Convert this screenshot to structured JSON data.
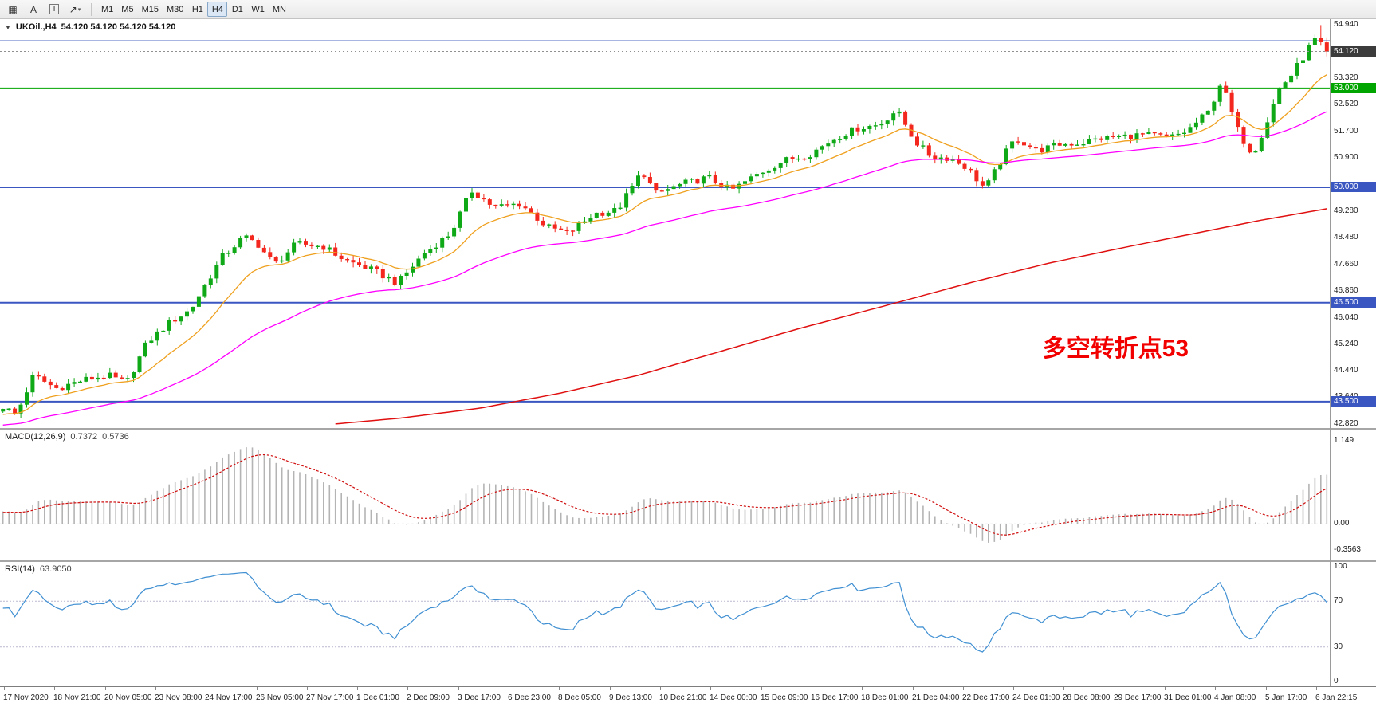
{
  "toolbar": {
    "tools": [
      {
        "name": "chart-grid-icon",
        "glyph": "▦"
      },
      {
        "name": "cursor-tool-icon",
        "glyph": "A"
      },
      {
        "name": "text-label-tool-icon",
        "glyph": "T",
        "boxed": true
      },
      {
        "name": "drawing-tools-icon",
        "glyph": "↗",
        "caret": "▾"
      }
    ],
    "timeframes": [
      "M1",
      "M5",
      "M15",
      "M30",
      "H1",
      "H4",
      "D1",
      "W1",
      "MN"
    ],
    "active": "H4"
  },
  "chart": {
    "header": {
      "collapse_glyph": "▼",
      "title": "UKOil.,H4",
      "ohlc": "54.120 54.120 54.120 54.120"
    },
    "annotation": {
      "text": "多空转折点53",
      "color": "#f20000"
    },
    "levels": [
      {
        "price": 54.45,
        "color": "#7487cf",
        "w": 1
      },
      {
        "price": 53.0,
        "color": "#00a500",
        "w": 2
      },
      {
        "price": 50.0,
        "color": "#3a56c0",
        "w": 2
      },
      {
        "price": 46.5,
        "color": "#3a56c0",
        "w": 2
      },
      {
        "price": 43.5,
        "color": "#3a56c0",
        "w": 2
      }
    ],
    "price_axis": {
      "ticks": [
        "54.940",
        "53.320",
        "52.520",
        "51.700",
        "50.900",
        "49.280",
        "48.480",
        "47.660",
        "46.860",
        "46.040",
        "45.240",
        "44.440",
        "43.640",
        "42.820"
      ],
      "badges": [
        {
          "label": "54.120",
          "value": 54.12,
          "bg": "#3c3c3c"
        },
        {
          "label": "53.000",
          "value": 53.0,
          "bg": "#00a500"
        },
        {
          "label": "50.000",
          "value": 50.0,
          "bg": "#3a56c0"
        },
        {
          "label": "46.500",
          "value": 46.5,
          "bg": "#3a56c0"
        },
        {
          "label": "43.500",
          "value": 43.5,
          "bg": "#3a56c0"
        }
      ]
    }
  },
  "macd": {
    "name": "MACD(12,26,9)",
    "value_main": "0.7372",
    "value_signal": "0.5736",
    "scale": [
      {
        "label": "1.149",
        "value": 1.149
      },
      {
        "label": "0.00",
        "value": 0
      },
      {
        "label": "-0.3563",
        "value": -0.3563
      }
    ]
  },
  "rsi": {
    "name": "RSI(14)",
    "value": "63.9050",
    "levels": [
      70,
      30
    ],
    "scale": [
      {
        "label": "100",
        "value": 100
      },
      {
        "label": "70",
        "value": 70
      },
      {
        "label": "30",
        "value": 30
      },
      {
        "label": "0",
        "value": 0
      }
    ]
  },
  "date_axis": [
    "17 Nov 2020",
    "18 Nov 21:00",
    "20 Nov 05:00",
    "23 Nov 08:00",
    "24 Nov 17:00",
    "26 Nov 05:00",
    "27 Nov 17:00",
    "1 Dec 01:00",
    "2 Dec 09:00",
    "3 Dec 17:00",
    "6 Dec 23:00",
    "8 Dec 05:00",
    "9 Dec 13:00",
    "10 Dec 21:00",
    "14 Dec 00:00",
    "15 Dec 09:00",
    "16 Dec 17:00",
    "18 Dec 01:00",
    "21 Dec 04:00",
    "22 Dec 17:00",
    "24 Dec 01:00",
    "28 Dec 08:00",
    "29 Dec 17:00",
    "31 Dec 01:00",
    "4 Jan 08:00",
    "5 Jan 17:00",
    "6 Jan 22:15"
  ],
  "chart_data": {
    "type": "candlestick",
    "symbol": "UKOil",
    "timeframe": "H4",
    "title": "UKOil.,H4 54.120 54.120 54.120 54.120",
    "last_price": 54.12,
    "session_high": 54.92,
    "candle_count": 224,
    "noise": 0.22,
    "wick": 0.15,
    "warmup_start": 42.4,
    "price_axis_range": [
      42.7,
      55.1
    ],
    "macd_range": [
      -0.5,
      1.3
    ],
    "rsi_range": [
      0,
      100
    ],
    "ma_fast_period": 14,
    "ma_mid_period": 50,
    "macd_params": [
      12,
      26,
      9
    ],
    "rsi_period": 14,
    "close_anchors": [
      [
        0,
        43.35
      ],
      [
        0.01,
        43.1
      ],
      [
        0.023,
        44.3
      ],
      [
        0.04,
        43.9
      ],
      [
        0.06,
        44.15
      ],
      [
        0.079,
        44.3
      ],
      [
        0.093,
        44.05
      ],
      [
        0.109,
        45.3
      ],
      [
        0.126,
        45.9
      ],
      [
        0.142,
        46.3
      ],
      [
        0.152,
        47.0
      ],
      [
        0.166,
        47.9
      ],
      [
        0.182,
        48.5
      ],
      [
        0.192,
        48.3
      ],
      [
        0.205,
        47.65
      ],
      [
        0.222,
        48.3
      ],
      [
        0.242,
        48.2
      ],
      [
        0.258,
        47.8
      ],
      [
        0.278,
        47.5
      ],
      [
        0.298,
        47.1
      ],
      [
        0.318,
        48.0
      ],
      [
        0.338,
        48.6
      ],
      [
        0.354,
        49.9
      ],
      [
        0.371,
        49.4
      ],
      [
        0.391,
        49.5
      ],
      [
        0.411,
        48.8
      ],
      [
        0.427,
        48.6
      ],
      [
        0.447,
        49.2
      ],
      [
        0.464,
        49.3
      ],
      [
        0.483,
        50.5
      ],
      [
        0.493,
        49.8
      ],
      [
        0.513,
        50.1
      ],
      [
        0.533,
        50.3
      ],
      [
        0.55,
        49.9
      ],
      [
        0.57,
        50.4
      ],
      [
        0.589,
        50.8
      ],
      [
        0.609,
        51.0
      ],
      [
        0.629,
        51.5
      ],
      [
        0.646,
        51.8
      ],
      [
        0.662,
        51.9
      ],
      [
        0.675,
        52.35
      ],
      [
        0.689,
        51.4
      ],
      [
        0.702,
        50.9
      ],
      [
        0.715,
        50.9
      ],
      [
        0.728,
        50.6
      ],
      [
        0.742,
        49.95
      ],
      [
        0.755,
        50.9
      ],
      [
        0.765,
        51.5
      ],
      [
        0.781,
        51.1
      ],
      [
        0.798,
        51.3
      ],
      [
        0.815,
        51.35
      ],
      [
        0.831,
        51.5
      ],
      [
        0.848,
        51.55
      ],
      [
        0.864,
        51.6
      ],
      [
        0.881,
        51.5
      ],
      [
        0.894,
        51.7
      ],
      [
        0.911,
        52.3
      ],
      [
        0.92,
        53.2
      ],
      [
        0.934,
        51.6
      ],
      [
        0.944,
        51.0
      ],
      [
        0.954,
        51.9
      ],
      [
        0.964,
        53.0
      ],
      [
        0.973,
        53.4
      ],
      [
        0.983,
        54.0
      ],
      [
        0.99,
        54.5
      ],
      [
        1,
        54.12
      ]
    ],
    "long_ma_anchors": [
      [
        0.25,
        42.82
      ],
      [
        0.3,
        43.0
      ],
      [
        0.36,
        43.3
      ],
      [
        0.42,
        43.75
      ],
      [
        0.48,
        44.3
      ],
      [
        0.54,
        45.0
      ],
      [
        0.6,
        45.7
      ],
      [
        0.675,
        46.5
      ],
      [
        0.73,
        47.1
      ],
      [
        0.79,
        47.7
      ],
      [
        0.85,
        48.2
      ],
      [
        0.9,
        48.6
      ],
      [
        0.95,
        49.0
      ],
      [
        1,
        49.35
      ]
    ],
    "colors": {
      "up": "#0fa918",
      "down": "#f3271d",
      "ma_fast": "#efa01e",
      "ma_mid": "#ff00ff",
      "ma_long": "#e01010",
      "histogram": "#b4b4b4",
      "signal": "#d01010",
      "rsi_line": "#3f8fd2",
      "rsi_level": "#b9b9d0",
      "zero_line": "#c8c8c8"
    }
  }
}
